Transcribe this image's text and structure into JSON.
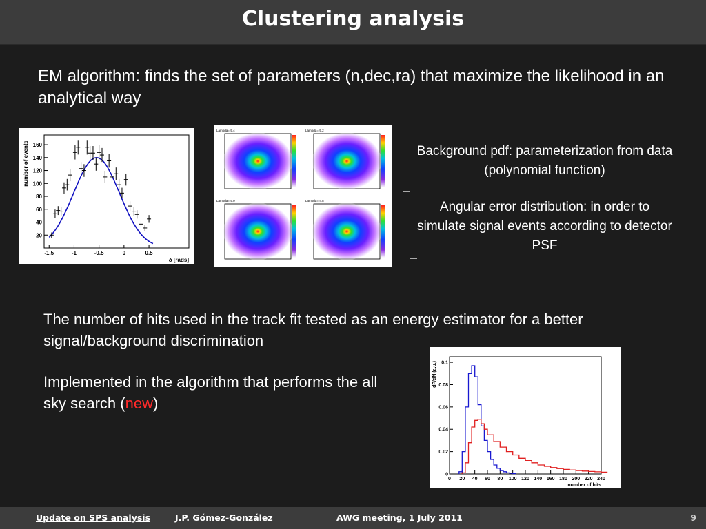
{
  "slide": {
    "title": "Clustering analysis",
    "intro": "EM algorithm: finds the set of parameters (n,dec,ra) that maximize the likelihood  in an analytical way",
    "notes": [
      "Background pdf: parameterization from data (polynomial function)",
      "Angular error distribution: in order to simulate signal events according to detector PSF"
    ],
    "para1": "The number of hits used in the track fit tested as an energy estimator for a better signal/background discrimination",
    "para2_prefix": "Implemented in the algorithm that performs the all sky search (",
    "para2_highlight": "new",
    "para2_suffix": ")"
  },
  "footer": {
    "left": "Update on SPS analysis",
    "author": "J.P. Gómez-González",
    "meeting": "AWG meeting, 1 July 2011",
    "page": "9"
  },
  "colors": {
    "fit_line": "#1010c0",
    "hist_blue": "#1818d0",
    "hist_red": "#e02020",
    "highlight": "#ff2a2a"
  },
  "chart_data": [
    {
      "type": "scatter",
      "xlabel": "δ [rads]",
      "ylabel": "number of events",
      "xlim": [
        -1.6,
        1.3
      ],
      "ylim": [
        0,
        175
      ],
      "xticks": [
        "-1.5",
        "-1",
        "-0.5",
        "0",
        "0.5"
      ],
      "yticks": [
        "20",
        "40",
        "60",
        "80",
        "100",
        "120",
        "140",
        "160"
      ],
      "points": [
        {
          "x": -1.45,
          "y": 20
        },
        {
          "x": -1.38,
          "y": 53
        },
        {
          "x": -1.32,
          "y": 58
        },
        {
          "x": -1.26,
          "y": 57
        },
        {
          "x": -1.2,
          "y": 93
        },
        {
          "x": -1.14,
          "y": 98
        },
        {
          "x": -1.08,
          "y": 113
        },
        {
          "x": -0.98,
          "y": 148
        },
        {
          "x": -0.92,
          "y": 156
        },
        {
          "x": -0.86,
          "y": 123
        },
        {
          "x": -0.8,
          "y": 120
        },
        {
          "x": -0.74,
          "y": 156
        },
        {
          "x": -0.68,
          "y": 147
        },
        {
          "x": -0.62,
          "y": 147
        },
        {
          "x": -0.56,
          "y": 130
        },
        {
          "x": -0.5,
          "y": 148
        },
        {
          "x": -0.44,
          "y": 144
        },
        {
          "x": -0.38,
          "y": 110
        },
        {
          "x": -0.3,
          "y": 135
        },
        {
          "x": -0.24,
          "y": 110
        },
        {
          "x": -0.16,
          "y": 115
        },
        {
          "x": -0.1,
          "y": 98
        },
        {
          "x": -0.04,
          "y": 85
        },
        {
          "x": 0.04,
          "y": 106
        },
        {
          "x": 0.12,
          "y": 65
        },
        {
          "x": 0.2,
          "y": 57
        },
        {
          "x": 0.26,
          "y": 52
        },
        {
          "x": 0.34,
          "y": 37
        },
        {
          "x": 0.42,
          "y": 31
        },
        {
          "x": 0.5,
          "y": 45
        }
      ],
      "fit_curve": {
        "peak_x": -0.55,
        "peak_y": 140,
        "x_range": [
          -1.5,
          0.58
        ],
        "end_y": [
          10,
          12
        ]
      }
    },
    {
      "type": "heatmap",
      "panels": [
        "Lambda=-5.4",
        "Lambda=-5.2",
        "Lambda=-5.0",
        "Lambda=-4.8"
      ]
    },
    {
      "type": "line",
      "xlabel": "number of hits",
      "ylabel": "dP/dN (a.u.)",
      "xlim": [
        0,
        240
      ],
      "ylim": [
        0,
        0.105
      ],
      "xticks": [
        "0",
        "20",
        "40",
        "60",
        "80",
        "100",
        "120",
        "140",
        "160",
        "180",
        "200",
        "220",
        "240"
      ],
      "yticks": [
        "0",
        "0.02",
        "0.04",
        "0.06",
        "0.08",
        "0.1"
      ],
      "series": [
        {
          "color": "blue",
          "x": [
            15,
            20,
            25,
            30,
            35,
            40,
            45,
            50,
            55,
            60,
            65,
            70,
            75,
            80,
            85,
            90,
            95,
            100
          ],
          "values": [
            0.002,
            0.02,
            0.06,
            0.09,
            0.097,
            0.087,
            0.062,
            0.043,
            0.03,
            0.02,
            0.013,
            0.008,
            0.005,
            0.003,
            0.002,
            0.001,
            0.0006,
            0.0003
          ]
        },
        {
          "color": "red",
          "x": [
            20,
            25,
            30,
            35,
            40,
            45,
            50,
            55,
            60,
            70,
            80,
            90,
            100,
            110,
            120,
            130,
            140,
            150,
            160,
            170,
            180,
            190,
            200,
            210,
            220,
            230,
            240
          ],
          "values": [
            0.001,
            0.01,
            0.028,
            0.042,
            0.048,
            0.049,
            0.045,
            0.04,
            0.035,
            0.029,
            0.024,
            0.02,
            0.017,
            0.014,
            0.012,
            0.01,
            0.008,
            0.0068,
            0.0057,
            0.0048,
            0.0041,
            0.0035,
            0.003,
            0.0026,
            0.0022,
            0.0019,
            0.0016
          ]
        }
      ]
    }
  ]
}
